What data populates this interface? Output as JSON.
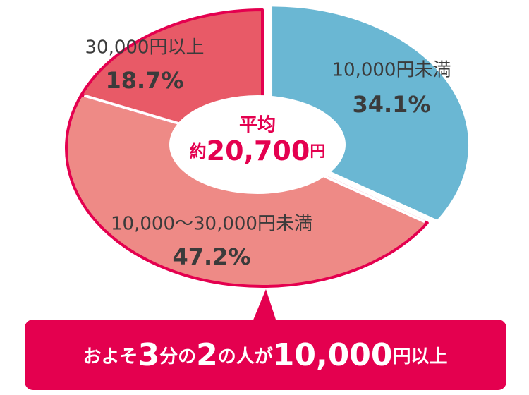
{
  "chart_data": {
    "type": "pie",
    "categories": [
      "10,000円未満",
      "10,000〜30,000円未満",
      "30,000円以上"
    ],
    "values": [
      34.1,
      47.2,
      18.7
    ],
    "value_labels": [
      "34.1%",
      "47.2%",
      "18.7%"
    ],
    "colors": [
      "#6ab7d3",
      "#ee8a86",
      "#e85a67"
    ],
    "exploded": [
      true,
      false,
      false
    ],
    "center_label": [
      "平均",
      "約",
      "20,700",
      "円"
    ],
    "callout": [
      "およそ",
      "3",
      "分の",
      "2",
      "の人が",
      "10,000",
      "円以上"
    ]
  }
}
